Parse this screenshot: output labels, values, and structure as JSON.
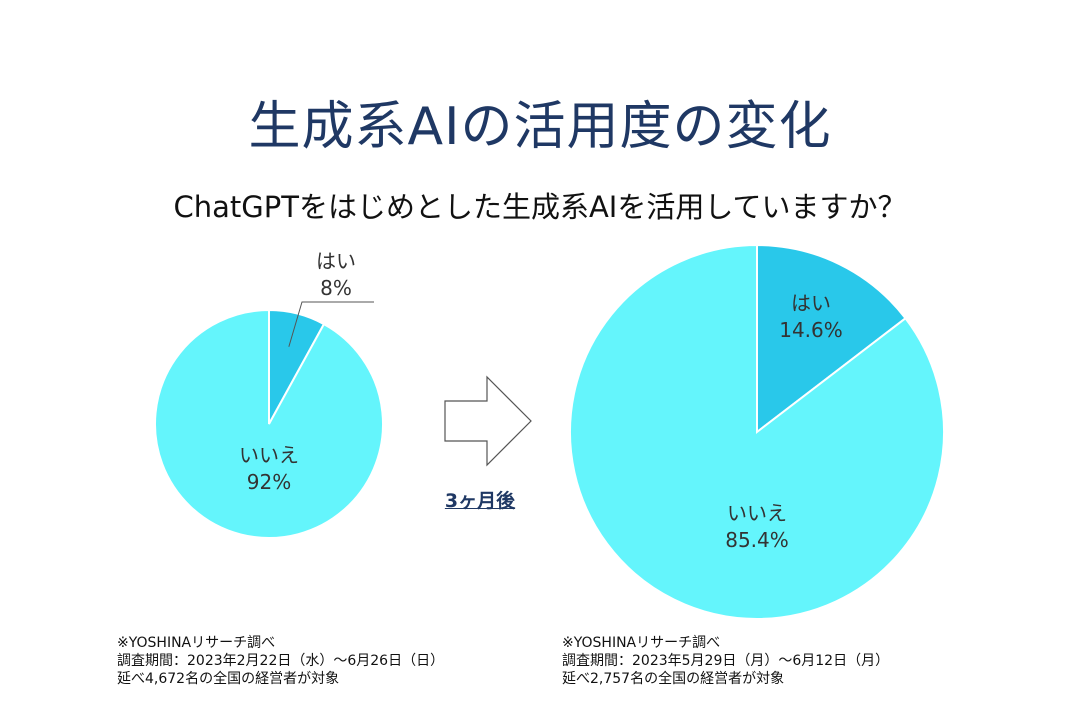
{
  "title": "生成系AIの活用度の変化",
  "subtitle": "ChatGPTをはじめとした生成系AIを活用していますか？",
  "arrow_caption": "3ヶ月後",
  "colors": {
    "yes": "#29c8ea",
    "no": "#64f5fc",
    "title": "#1f3864"
  },
  "chart_data": [
    {
      "type": "pie",
      "slices": [
        {
          "label": "はい",
          "value": 8,
          "value_label": "8%"
        },
        {
          "label": "いいえ",
          "value": 92,
          "value_label": "92%"
        }
      ]
    },
    {
      "type": "pie",
      "slices": [
        {
          "label": "はい",
          "value": 14.6,
          "value_label": "14.6%"
        },
        {
          "label": "いいえ",
          "value": 85.4,
          "value_label": "85.4%"
        }
      ]
    }
  ],
  "notes": [
    {
      "source": "※YOSHINAリサーチ調べ",
      "period": "調査期間：2023年2月22日（水）～6月26日（日）",
      "sample": "延べ4,672名の全国の経営者が対象"
    },
    {
      "source": "※YOSHINAリサーチ調べ",
      "period": "調査期間：2023年5月29日（月）～6月12日（月）",
      "sample": "延べ2,757名の全国の経営者が対象"
    }
  ]
}
